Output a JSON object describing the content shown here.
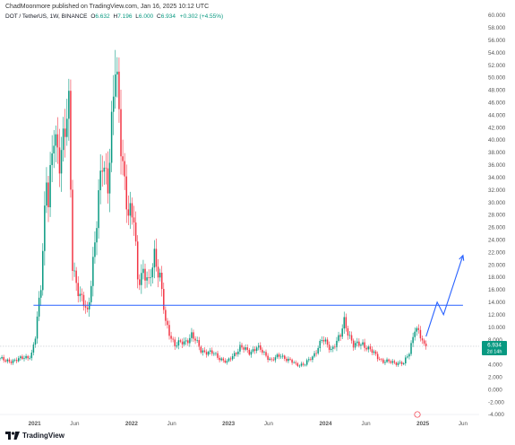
{
  "header": {
    "publisher_line": "ChadMoonmore published on TradingView.com, Jan 16, 2025 10:12 UTC",
    "symbol": "DOT / TetherUS, 1W, BINANCE",
    "o_label": "O",
    "o_value": "6.632",
    "h_label": "H",
    "h_value": "7.196",
    "l_label": "L",
    "l_value": "6.000",
    "c_label": "C",
    "c_value": "6.934",
    "change": "+0.302 (+4.55%)"
  },
  "footer": {
    "brand": "TradingView",
    "logo_icon": "tradingview-logo-icon"
  },
  "colors": {
    "up": "#089981",
    "down": "#f23645",
    "level_line": "#2962ff",
    "projection": "#2962ff",
    "price_label_bg": "#089981"
  },
  "chart_data": {
    "type": "candlestick",
    "title": "DOT / TetherUS, 1W, BINANCE",
    "y_axis": {
      "side": "right",
      "range": [
        -4,
        61
      ],
      "ticks": [
        -4,
        -2,
        0,
        2,
        4,
        6,
        8,
        10,
        12,
        14,
        16,
        18,
        20,
        22,
        24,
        26,
        28,
        30,
        32,
        34,
        36,
        38,
        40,
        42,
        44,
        46,
        48,
        50,
        52,
        54,
        56,
        58,
        60
      ],
      "tick_labels": [
        "-4.000",
        "-2.000",
        "0.000",
        "2.000",
        "4.000",
        "6.000",
        "8.000",
        "10.000",
        "12.000",
        "14.000",
        "16.000",
        "18.000",
        "20.000",
        "22.000",
        "24.000",
        "26.000",
        "28.000",
        "30.000",
        "32.000",
        "34.000",
        "36.000",
        "38.000",
        "40.000",
        "42.000",
        "44.000",
        "46.000",
        "48.000",
        "50.000",
        "52.000",
        "54.000",
        "56.000",
        "58.000",
        "60.000"
      ]
    },
    "x_axis": {
      "range": [
        "2020-08-24",
        "2025-08-01"
      ],
      "ticks": [
        {
          "date": "2021-01-01",
          "label": "2021"
        },
        {
          "date": "2021-06-01",
          "label": "Jun"
        },
        {
          "date": "2022-01-01",
          "label": "2022"
        },
        {
          "date": "2022-06-01",
          "label": "Jun"
        },
        {
          "date": "2023-01-01",
          "label": "2023"
        },
        {
          "date": "2023-06-01",
          "label": "Jun"
        },
        {
          "date": "2024-01-01",
          "label": "2024"
        },
        {
          "date": "2024-06-01",
          "label": "Jun"
        },
        {
          "date": "2025-01-01",
          "label": "2025"
        },
        {
          "date": "2025-06-01",
          "label": "Jun"
        }
      ]
    },
    "price_path": [
      {
        "date": "2020-08-24",
        "price": 5.0
      },
      {
        "date": "2020-09-14",
        "price": 4.5
      },
      {
        "date": "2020-11-01",
        "price": 4.8
      },
      {
        "date": "2020-12-20",
        "price": 5.5
      },
      {
        "date": "2021-01-05",
        "price": 8.5
      },
      {
        "date": "2021-01-25",
        "price": 17.0
      },
      {
        "date": "2021-02-15",
        "price": 35.0
      },
      {
        "date": "2021-02-22",
        "price": 30.0
      },
      {
        "date": "2021-03-15",
        "price": 40.0
      },
      {
        "date": "2021-04-05",
        "price": 38.0
      },
      {
        "date": "2021-05-10",
        "price": 44.0
      },
      {
        "date": "2021-05-24",
        "price": 20.0
      },
      {
        "date": "2021-06-21",
        "price": 15.0
      },
      {
        "date": "2021-07-20",
        "price": 12.0
      },
      {
        "date": "2021-08-16",
        "price": 24.0
      },
      {
        "date": "2021-09-13",
        "price": 36.0
      },
      {
        "date": "2021-10-04",
        "price": 34.0
      },
      {
        "date": "2021-11-01",
        "price": 51.0
      },
      {
        "date": "2021-11-22",
        "price": 40.0
      },
      {
        "date": "2021-12-20",
        "price": 28.0
      },
      {
        "date": "2022-01-10",
        "price": 27.0
      },
      {
        "date": "2022-01-24",
        "price": 18.0
      },
      {
        "date": "2022-02-14",
        "price": 19.0
      },
      {
        "date": "2022-03-07",
        "price": 16.5
      },
      {
        "date": "2022-03-28",
        "price": 22.0
      },
      {
        "date": "2022-04-18",
        "price": 18.0
      },
      {
        "date": "2022-05-09",
        "price": 10.5
      },
      {
        "date": "2022-06-13",
        "price": 7.2
      },
      {
        "date": "2022-07-18",
        "price": 7.5
      },
      {
        "date": "2022-08-15",
        "price": 8.8
      },
      {
        "date": "2022-09-19",
        "price": 6.3
      },
      {
        "date": "2022-11-07",
        "price": 5.7
      },
      {
        "date": "2022-12-26",
        "price": 4.3
      },
      {
        "date": "2023-02-13",
        "price": 6.8
      },
      {
        "date": "2023-03-20",
        "price": 6.0
      },
      {
        "date": "2023-04-17",
        "price": 6.8
      },
      {
        "date": "2023-06-12",
        "price": 4.7
      },
      {
        "date": "2023-07-17",
        "price": 5.5
      },
      {
        "date": "2023-09-11",
        "price": 4.0
      },
      {
        "date": "2023-10-16",
        "price": 4.1
      },
      {
        "date": "2023-11-13",
        "price": 5.2
      },
      {
        "date": "2023-12-18",
        "price": 8.0
      },
      {
        "date": "2024-01-22",
        "price": 6.5
      },
      {
        "date": "2024-02-26",
        "price": 8.5
      },
      {
        "date": "2024-03-11",
        "price": 11.0
      },
      {
        "date": "2024-04-15",
        "price": 7.0
      },
      {
        "date": "2024-05-20",
        "price": 7.4
      },
      {
        "date": "2024-06-24",
        "price": 6.0
      },
      {
        "date": "2024-08-05",
        "price": 4.5
      },
      {
        "date": "2024-09-30",
        "price": 4.3
      },
      {
        "date": "2024-10-21",
        "price": 4.1
      },
      {
        "date": "2024-11-11",
        "price": 6.0
      },
      {
        "date": "2024-12-02",
        "price": 10.0
      },
      {
        "date": "2024-12-16",
        "price": 9.0
      },
      {
        "date": "2025-01-06",
        "price": 7.0
      },
      {
        "date": "2025-01-13",
        "price": 6.934
      }
    ],
    "horizontal_level": {
      "price": 13.5,
      "from": "2020-12-28",
      "to": "2025-06-01"
    },
    "current_price": {
      "price": 6.934,
      "label": "6.934",
      "countdown": "2d 14h"
    },
    "projection": [
      {
        "date": "2025-01-13",
        "price": 8.5
      },
      {
        "date": "2025-02-24",
        "price": 14.0
      },
      {
        "date": "2025-03-20",
        "price": 12.0
      },
      {
        "date": "2025-06-01",
        "price": 21.5
      }
    ],
    "grid": false,
    "legend": "none"
  }
}
